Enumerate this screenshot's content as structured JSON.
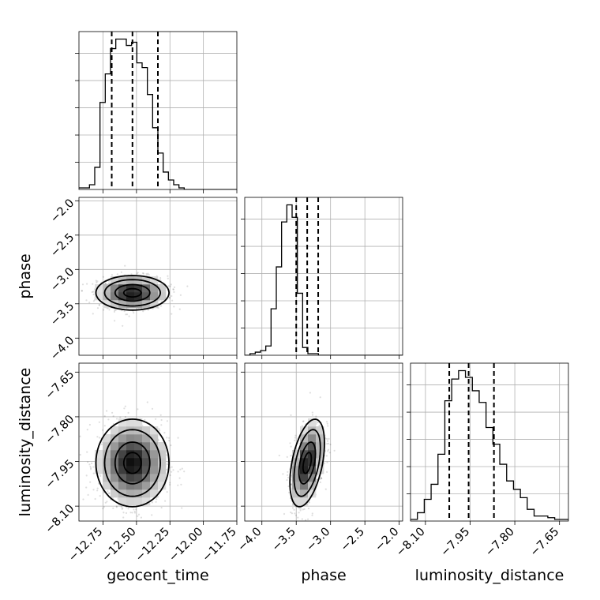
{
  "chart_data": {
    "type": "corner",
    "grid": true,
    "variables": [
      {
        "key": "geocent_time",
        "label": "geocent_time",
        "range": [
          -12.93,
          -11.75
        ],
        "ticks": [
          -12.75,
          -12.5,
          -12.25,
          -12.0,
          -11.75
        ],
        "tick_labels": [
          "−12.75",
          "−12.50",
          "−12.25",
          "−12.00",
          "−11.75"
        ],
        "quantiles": [
          -12.685,
          -12.53,
          -12.34
        ],
        "center": -12.53,
        "spread": 0.13,
        "hist_counts": [
          1,
          1,
          3,
          14,
          55,
          73,
          89,
          95,
          95,
          91,
          93,
          80,
          77,
          60,
          39,
          23,
          11,
          6,
          3,
          1,
          0,
          0,
          0,
          0,
          0,
          0,
          0,
          0,
          0,
          0
        ]
      },
      {
        "key": "phase",
        "label": "phase",
        "range": [
          -4.25,
          -1.95
        ],
        "ticks": [
          -4.0,
          -3.5,
          -3.0,
          -2.5,
          -2.0
        ],
        "tick_labels": [
          "−4.0",
          "−3.5",
          "−3.0",
          "−2.5",
          "−2.0"
        ],
        "quantiles": [
          -3.5,
          -3.34,
          -3.18
        ],
        "center": -3.34,
        "spread": 0.12,
        "hist_counts": [
          0,
          1,
          2,
          3,
          6,
          30,
          57,
          86,
          97,
          89,
          40,
          5,
          1,
          1,
          0,
          0,
          0,
          0,
          0,
          0,
          0,
          0,
          0,
          0,
          0,
          0,
          0,
          0,
          0,
          0
        ]
      },
      {
        "key": "luminosity_distance",
        "label": "luminosity_distance",
        "range": [
          -8.15,
          -7.62
        ],
        "ticks": [
          -8.1,
          -7.95,
          -7.8,
          -7.65
        ],
        "tick_labels": [
          "−8.10",
          "−7.95",
          "−7.80",
          "−7.65"
        ],
        "quantiles": [
          -8.02,
          -7.955,
          -7.87
        ],
        "center": -7.955,
        "spread": 0.07,
        "hist_counts": [
          1,
          5,
          13,
          22,
          40,
          72,
          85,
          90,
          86,
          78,
          71,
          56,
          46,
          34,
          24,
          19,
          14,
          7,
          3,
          3,
          2,
          1,
          1
        ]
      }
    ],
    "contour_levels": [
      0.39,
      0.86,
      1.0
    ]
  }
}
